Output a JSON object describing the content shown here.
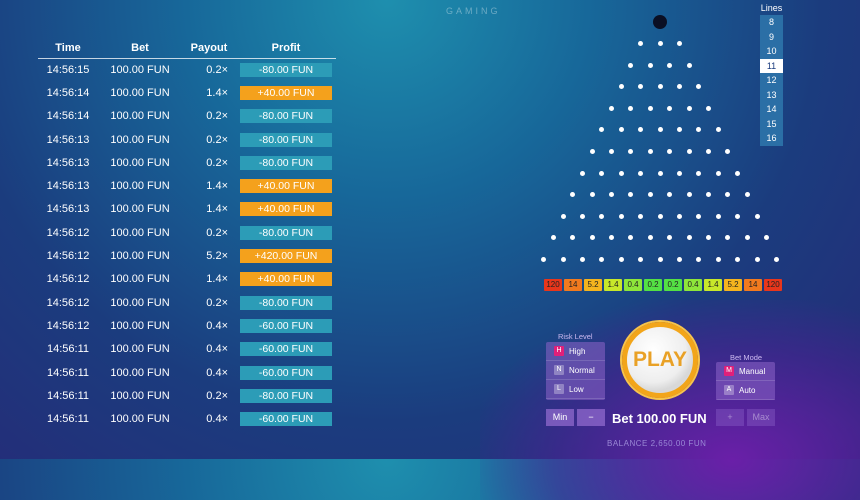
{
  "logo": "GAMING",
  "table": {
    "headers": [
      "Time",
      "Bet",
      "Payout",
      "Profit"
    ],
    "rows": [
      [
        "14:56:15",
        "100.00 FUN",
        "0.2×",
        "-80.00 FUN"
      ],
      [
        "14:56:14",
        "100.00 FUN",
        "1.4×",
        "+40.00 FUN"
      ],
      [
        "14:56:14",
        "100.00 FUN",
        "0.2×",
        "-80.00 FUN"
      ],
      [
        "14:56:13",
        "100.00 FUN",
        "0.2×",
        "-80.00 FUN"
      ],
      [
        "14:56:13",
        "100.00 FUN",
        "0.2×",
        "-80.00 FUN"
      ],
      [
        "14:56:13",
        "100.00 FUN",
        "1.4×",
        "+40.00 FUN"
      ],
      [
        "14:56:13",
        "100.00 FUN",
        "1.4×",
        "+40.00 FUN"
      ],
      [
        "14:56:12",
        "100.00 FUN",
        "0.2×",
        "-80.00 FUN"
      ],
      [
        "14:56:12",
        "100.00 FUN",
        "5.2×",
        "+420.00 FUN"
      ],
      [
        "14:56:12",
        "100.00 FUN",
        "1.4×",
        "+40.00 FUN"
      ],
      [
        "14:56:12",
        "100.00 FUN",
        "0.2×",
        "-80.00 FUN"
      ],
      [
        "14:56:12",
        "100.00 FUN",
        "0.4×",
        "-60.00 FUN"
      ],
      [
        "14:56:11",
        "100.00 FUN",
        "0.4×",
        "-60.00 FUN"
      ],
      [
        "14:56:11",
        "100.00 FUN",
        "0.4×",
        "-60.00 FUN"
      ],
      [
        "14:56:11",
        "100.00 FUN",
        "0.2×",
        "-80.00 FUN"
      ],
      [
        "14:56:11",
        "100.00 FUN",
        "0.4×",
        "-60.00 FUN"
      ]
    ]
  },
  "lines": {
    "label": "Lines",
    "options": [
      "8",
      "9",
      "10",
      "11",
      "12",
      "13",
      "14",
      "15",
      "16"
    ],
    "selected": "11"
  },
  "multipliers": [
    {
      "v": "120",
      "c": "#e8361b"
    },
    {
      "v": "14",
      "c": "#f27a1e"
    },
    {
      "v": "5.2",
      "c": "#f5b41e"
    },
    {
      "v": "1.4",
      "c": "#c8e82a"
    },
    {
      "v": "0.4",
      "c": "#8ee63a"
    },
    {
      "v": "0.2",
      "c": "#54e044"
    },
    {
      "v": "0.2",
      "c": "#54e044"
    },
    {
      "v": "0.4",
      "c": "#8ee63a"
    },
    {
      "v": "1.4",
      "c": "#c8e82a"
    },
    {
      "v": "5.2",
      "c": "#f5b41e"
    },
    {
      "v": "14",
      "c": "#f27a1e"
    },
    {
      "v": "120",
      "c": "#e8361b"
    }
  ],
  "risk": {
    "label": "Risk Level",
    "options": [
      {
        "label": "High",
        "icon": "H"
      },
      {
        "label": "Normal",
        "icon": "N"
      },
      {
        "label": "Low",
        "icon": "L"
      }
    ],
    "selected": "High"
  },
  "mode": {
    "label": "Bet Mode",
    "options": [
      {
        "label": "Manual",
        "icon": "M"
      },
      {
        "label": "Auto",
        "icon": "A"
      }
    ],
    "selected": "Manual"
  },
  "buttons": {
    "min": "Min",
    "minus": "−",
    "plus": "+",
    "max": "Max",
    "play": "PLAY"
  },
  "bet": "Bet 100.00 FUN",
  "balance": "BALANCE 2,650.00 FUN",
  "colors": {
    "neg": "#2c9cb7",
    "pos": "#f4a11c"
  }
}
